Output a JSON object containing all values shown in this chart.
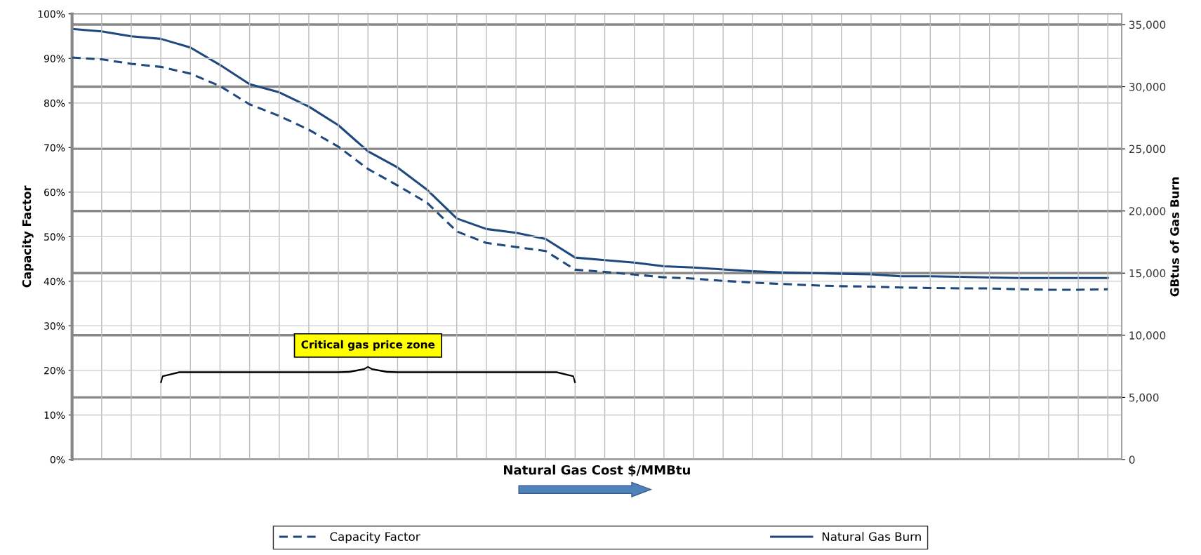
{
  "chart_data": {
    "type": "line",
    "xlabel": "Natural Gas Cost $/MMBtu",
    "ylabel": "Capacity Factor",
    "y2label": "GBtus of Gas Burn",
    "categories": [
      null,
      null,
      null,
      null,
      null,
      null,
      null,
      null,
      null,
      null,
      null,
      null,
      null,
      null,
      null,
      null,
      null,
      null,
      null,
      null,
      null,
      null,
      null,
      null,
      null,
      null,
      null,
      null,
      null,
      null,
      null,
      null,
      null,
      null,
      null,
      null
    ],
    "series": [
      {
        "name": "Capacity Factor",
        "color": "#1f497d",
        "line_style": "dashed",
        "values": [
          90.2,
          89.8,
          88.8,
          88.1,
          86.6,
          83.8,
          79.7,
          77.1,
          74.0,
          70.2,
          65.2,
          61.5,
          57.6,
          51.2,
          48.6,
          47.7,
          46.8,
          42.6,
          42.1,
          41.5,
          40.9,
          40.6,
          40.1,
          39.7,
          39.4,
          39.1,
          38.9,
          38.8,
          38.6,
          38.5,
          38.4,
          38.4,
          38.2,
          38.1,
          38.1,
          38.2
        ]
      },
      {
        "name": "Natural Gas Burn",
        "color": "#1f497d",
        "line_style": "solid",
        "axis": "y2",
        "values": [
          34650,
          34450,
          34050,
          33850,
          33150,
          31750,
          30200,
          29550,
          28400,
          26900,
          24800,
          23500,
          21700,
          19400,
          18550,
          18250,
          17750,
          16250,
          16050,
          15850,
          15550,
          15450,
          15300,
          15150,
          15050,
          15000,
          14950,
          14900,
          14750,
          14750,
          14700,
          14650,
          14600,
          14600,
          14600,
          14600
        ]
      }
    ],
    "ylim": [
      0,
      100
    ],
    "yticks": [
      {
        "value": 0,
        "label": "0%"
      },
      {
        "value": 10,
        "label": "10%"
      },
      {
        "value": 20,
        "label": "20%"
      },
      {
        "value": 30,
        "label": "30%"
      },
      {
        "value": 40,
        "label": "40%"
      },
      {
        "value": 50,
        "label": "50%"
      },
      {
        "value": 60,
        "label": "60%"
      },
      {
        "value": 70,
        "label": "70%"
      },
      {
        "value": 80,
        "label": "80%"
      },
      {
        "value": 90,
        "label": "90%"
      },
      {
        "value": 100,
        "label": "100%"
      }
    ],
    "y2lim": [
      0,
      35860
    ],
    "y2ticks": [
      0,
      {
        "value": 5000,
        "label": "5,000"
      },
      {
        "value": 10000,
        "label": "10,000"
      },
      {
        "value": 15000,
        "label": "15,000"
      },
      {
        "value": 20000,
        "label": "20,000"
      },
      {
        "value": 25000,
        "label": "25,000"
      },
      {
        "value": 30000,
        "label": "30,000"
      },
      {
        "value": 35000,
        "label": "35,000"
      }
    ],
    "annotations": [
      "Critical gas price zone"
    ],
    "grid": true,
    "legend": "bottom",
    "marker": "none"
  }
}
